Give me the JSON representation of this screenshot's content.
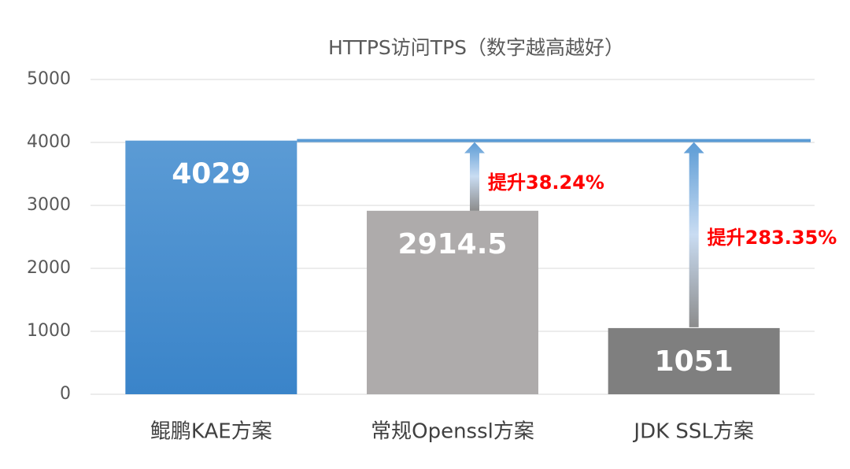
{
  "chart_data": {
    "type": "bar",
    "title": "HTTPS访问TPS（数字越高越好）",
    "categories": [
      "鲲鹏KAE方案",
      "常规Openssl方案",
      "JDK SSL方案"
    ],
    "values": [
      4029,
      2914.5,
      1051
    ],
    "colors": [
      "#4a90d4",
      "#aeabab",
      "#7f7f7f"
    ],
    "ylim": [
      0,
      5000
    ],
    "yticks": [
      0,
      1000,
      2000,
      3000,
      4000,
      5000
    ],
    "grid": true,
    "annotations": [
      "提升38.24%",
      "提升283.35%"
    ]
  }
}
